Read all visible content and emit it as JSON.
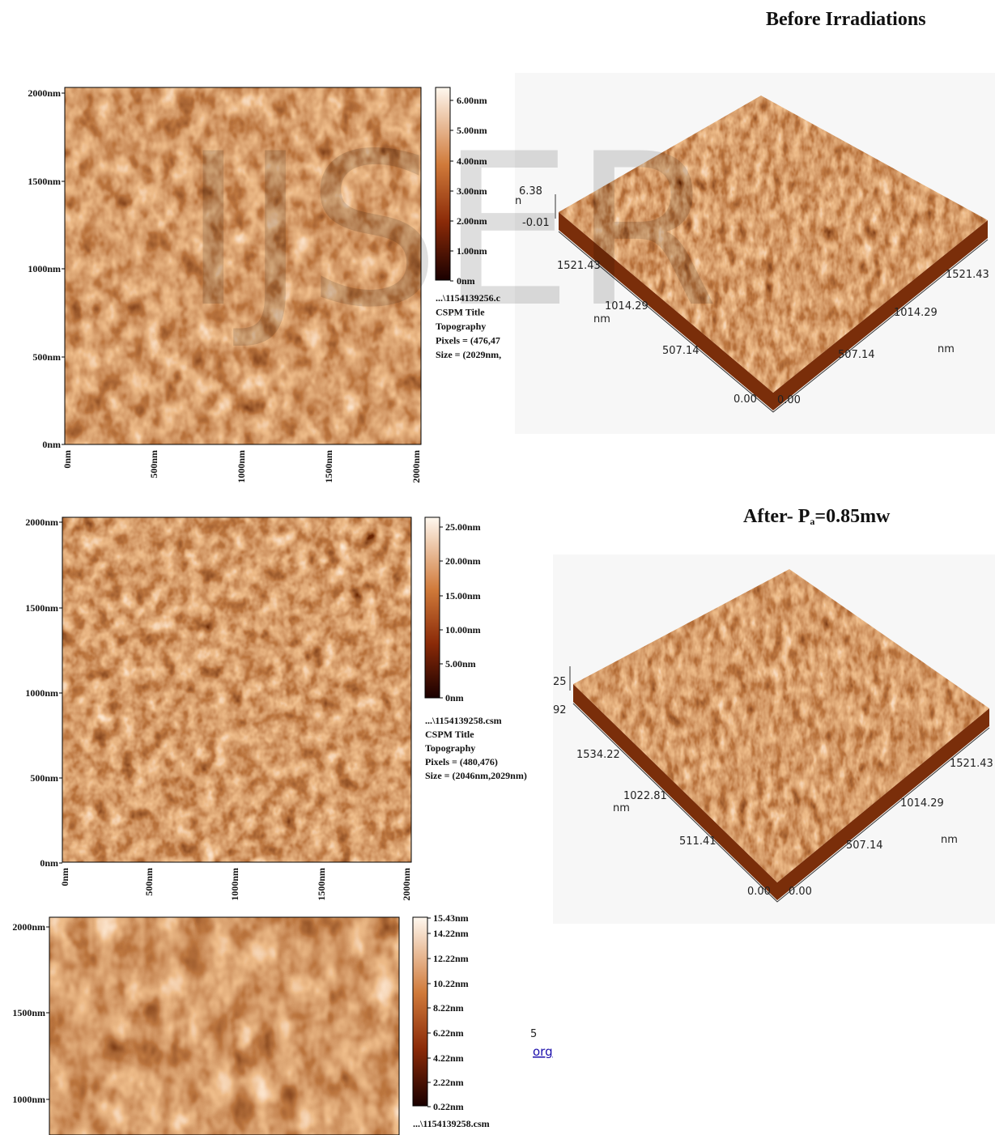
{
  "header": {
    "title": "Before Irradiations"
  },
  "watermark": "IJSER",
  "panels": [
    {
      "y_ticks": [
        "2000nm",
        "1500nm",
        "1000nm",
        "500nm",
        "0nm"
      ],
      "x_ticks": [
        "0nm",
        "500nm",
        "1000nm",
        "1500nm",
        "2000nm"
      ],
      "colorbar_ticks": [
        "6.00nm",
        "5.00nm",
        "4.00nm",
        "3.00nm",
        "2.00nm",
        "1.00nm",
        "0nm"
      ],
      "info": [
        "...\\1154139256.c",
        "CSPM Title",
        "Topography",
        "Pixels = (476,47",
        "Size = (2029nm,"
      ]
    },
    {
      "y_ticks": [
        "2000nm",
        "1500nm",
        "1000nm",
        "500nm",
        "0nm"
      ],
      "x_ticks": [
        "0nm",
        "500nm",
        "1000nm",
        "1500nm",
        "2000nm"
      ],
      "colorbar_ticks": [
        "25.00nm",
        "20.00nm",
        "15.00nm",
        "10.00nm",
        "5.00nm",
        "0nm"
      ],
      "info": [
        "...\\1154139258.csm",
        "CSPM Title",
        "Topography",
        "Pixels = (480,476)",
        "Size = (2046nm,2029nm)"
      ]
    },
    {
      "y_ticks": [
        "2000nm",
        "1500nm",
        "1000nm"
      ],
      "x_ticks": [],
      "colorbar_ticks": [
        "15.43nm",
        "14.22nm",
        "12.22nm",
        "10.22nm",
        "8.22nm",
        "6.22nm",
        "4.22nm",
        "2.22nm",
        "0.22nm"
      ],
      "info": [
        "...\\1154139258.csm"
      ]
    }
  ],
  "surfaces": [
    {
      "z_labels": [
        "6.38",
        "n",
        "-0.01"
      ],
      "left_axis": [
        "1521.43",
        "1014.29",
        "507.14",
        "0.00"
      ],
      "left_unit": "nm",
      "right_axis": [
        "1521.43",
        "1014.29",
        "507.14",
        "0.00"
      ],
      "right_unit": "nm"
    },
    {
      "z_labels": [
        "25",
        "92"
      ],
      "left_axis": [
        "1534.22",
        "1022.81",
        "511.41",
        "0.00"
      ],
      "left_unit": "nm",
      "right_axis": [
        "1521.43",
        "1014.29",
        "507.14",
        "0.00"
      ],
      "right_unit": "nm"
    }
  ],
  "after_heading": {
    "prefix": "After- P",
    "subscript": "a",
    "suffix": "=0.85mw"
  },
  "fragments": [
    "5",
    "org"
  ]
}
